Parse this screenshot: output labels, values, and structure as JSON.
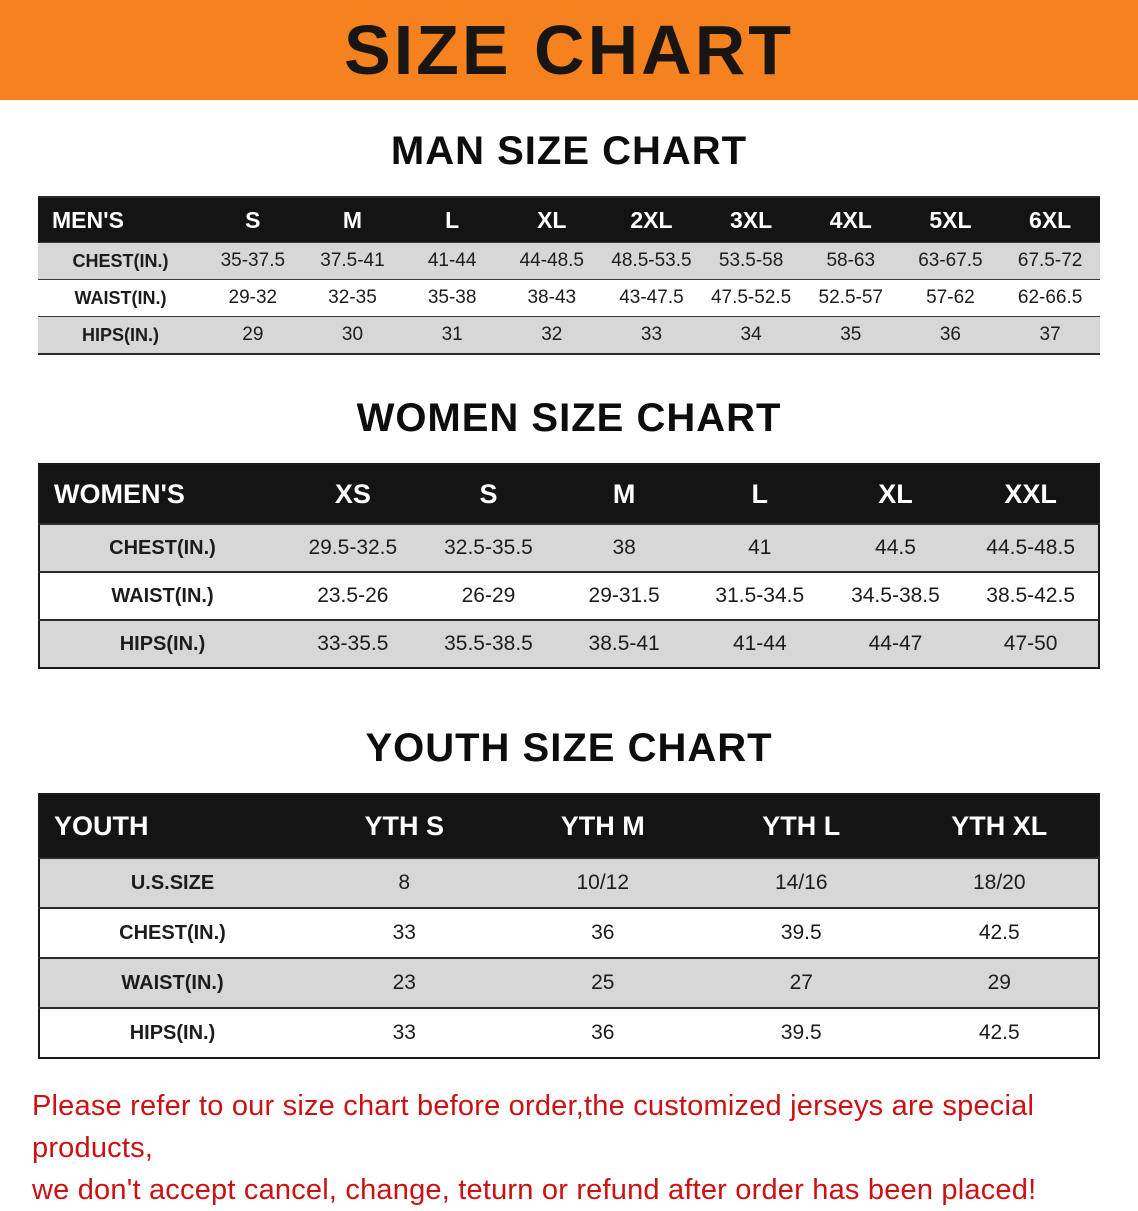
{
  "banner": {
    "title": "SIZE CHART",
    "bg_color": "#F6821F"
  },
  "chart_data": [
    {
      "type": "table",
      "title": "MAN SIZE CHART",
      "header": [
        "MEN'S",
        "S",
        "M",
        "L",
        "XL",
        "2XL",
        "3XL",
        "4XL",
        "5XL",
        "6XL"
      ],
      "rows": [
        {
          "label": "CHEST(IN.)",
          "values": [
            "35-37.5",
            "37.5-41",
            "41-44",
            "44-48.5",
            "48.5-53.5",
            "53.5-58",
            "58-63",
            "63-67.5",
            "67.5-72"
          ]
        },
        {
          "label": "WAIST(IN.)",
          "values": [
            "29-32",
            "32-35",
            "35-38",
            "38-43",
            "43-47.5",
            "47.5-52.5",
            "52.5-57",
            "57-62",
            "62-66.5"
          ]
        },
        {
          "label": "HIPS(IN.)",
          "values": [
            "29",
            "30",
            "31",
            "32",
            "33",
            "34",
            "35",
            "36",
            "37"
          ]
        }
      ]
    },
    {
      "type": "table",
      "title": "WOMEN SIZE CHART",
      "header": [
        "WOMEN'S",
        "XS",
        "S",
        "M",
        "L",
        "XL",
        "XXL"
      ],
      "rows": [
        {
          "label": "CHEST(IN.)",
          "values": [
            "29.5-32.5",
            "32.5-35.5",
            "38",
            "41",
            "44.5",
            "44.5-48.5"
          ]
        },
        {
          "label": "WAIST(IN.)",
          "values": [
            "23.5-26",
            "26-29",
            "29-31.5",
            "31.5-34.5",
            "34.5-38.5",
            "38.5-42.5"
          ]
        },
        {
          "label": "HIPS(IN.)",
          "values": [
            "33-35.5",
            "35.5-38.5",
            "38.5-41",
            "41-44",
            "44-47",
            "47-50"
          ]
        }
      ]
    },
    {
      "type": "table",
      "title": "YOUTH SIZE CHART",
      "header": [
        "YOUTH",
        "YTH S",
        "YTH M",
        "YTH L",
        "YTH XL"
      ],
      "rows": [
        {
          "label": "U.S.SIZE",
          "values": [
            "8",
            "10/12",
            "14/16",
            "18/20"
          ]
        },
        {
          "label": "CHEST(IN.)",
          "values": [
            "33",
            "36",
            "39.5",
            "42.5"
          ]
        },
        {
          "label": "WAIST(IN.)",
          "values": [
            "23",
            "25",
            "27",
            "29"
          ]
        },
        {
          "label": "HIPS(IN.)",
          "values": [
            "33",
            "36",
            "39.5",
            "42.5"
          ]
        }
      ]
    }
  ],
  "footer": {
    "line1": "Please refer to our size chart before order,the customized jerseys are special products,",
    "line2": "we don't accept cancel, change, teturn or refund after order has been placed!"
  },
  "colors": {
    "banner_orange": "#F6821F",
    "header_black": "#141414",
    "row_gray": "#D7D7D7",
    "note_red": "#CB1111"
  }
}
